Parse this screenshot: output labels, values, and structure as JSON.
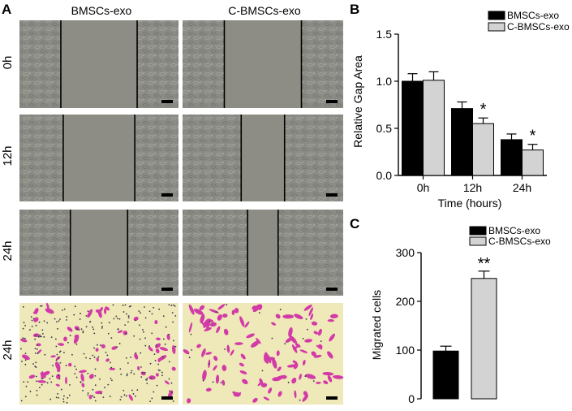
{
  "panels": {
    "a": {
      "letter": "A",
      "columns": [
        "BMSCs-exo",
        "C-BMSCs-exo"
      ],
      "rows": [
        "0h",
        "12h",
        "24h",
        "24h"
      ],
      "scratch_gap_fraction": [
        [
          0.48,
          0.48
        ],
        [
          0.45,
          0.27
        ],
        [
          0.36,
          0.19
        ]
      ],
      "micrograph_colors": {
        "phase": "#8a8a84",
        "stain_bg": "#efe8b8",
        "stain_cells": "#d23aa7",
        "scale_bar": "#000000"
      }
    },
    "b": {
      "letter": "B"
    },
    "c": {
      "letter": "C"
    }
  },
  "chart_data": [
    {
      "type": "bar",
      "categories": [
        "0h",
        "12h",
        "24h"
      ],
      "series": [
        {
          "name": "BMSCs-exo",
          "values": [
            1.0,
            0.71,
            0.38
          ],
          "errors": [
            0.08,
            0.07,
            0.06
          ],
          "color": "#000000"
        },
        {
          "name": "C-BMSCs-exo",
          "values": [
            1.01,
            0.55,
            0.27
          ],
          "errors": [
            0.09,
            0.06,
            0.06
          ],
          "color": "#d3d3d3"
        }
      ],
      "annotations": [
        {
          "category": "12h",
          "series": "C-BMSCs-exo",
          "text": "*"
        },
        {
          "category": "24h",
          "series": "C-BMSCs-exo",
          "text": "*"
        }
      ],
      "xlabel": "Time (hours)",
      "ylabel": "Relative Gap Area",
      "ylim": [
        0,
        1.5
      ],
      "yticks": [
        "0.0",
        "0.5",
        "1.0",
        "1.5"
      ],
      "grid": false,
      "legend": "top-right"
    },
    {
      "type": "bar",
      "categories": [
        "BMSCs-exo",
        "C-BMSCs-exo"
      ],
      "values": [
        98,
        247
      ],
      "errors": [
        10,
        15
      ],
      "colors": [
        "#000000",
        "#d3d3d3"
      ],
      "annotations": [
        {
          "category": "C-BMSCs-exo",
          "text": "**"
        }
      ],
      "xlabel": "",
      "ylabel": "Migrated cells",
      "ylim": [
        0,
        300
      ],
      "yticks": [
        "0",
        "100",
        "200",
        "300"
      ],
      "legend_labels": [
        "BMSCs-exo",
        "C-BMSCs-exo"
      ],
      "grid": false,
      "legend": "top-left"
    }
  ]
}
